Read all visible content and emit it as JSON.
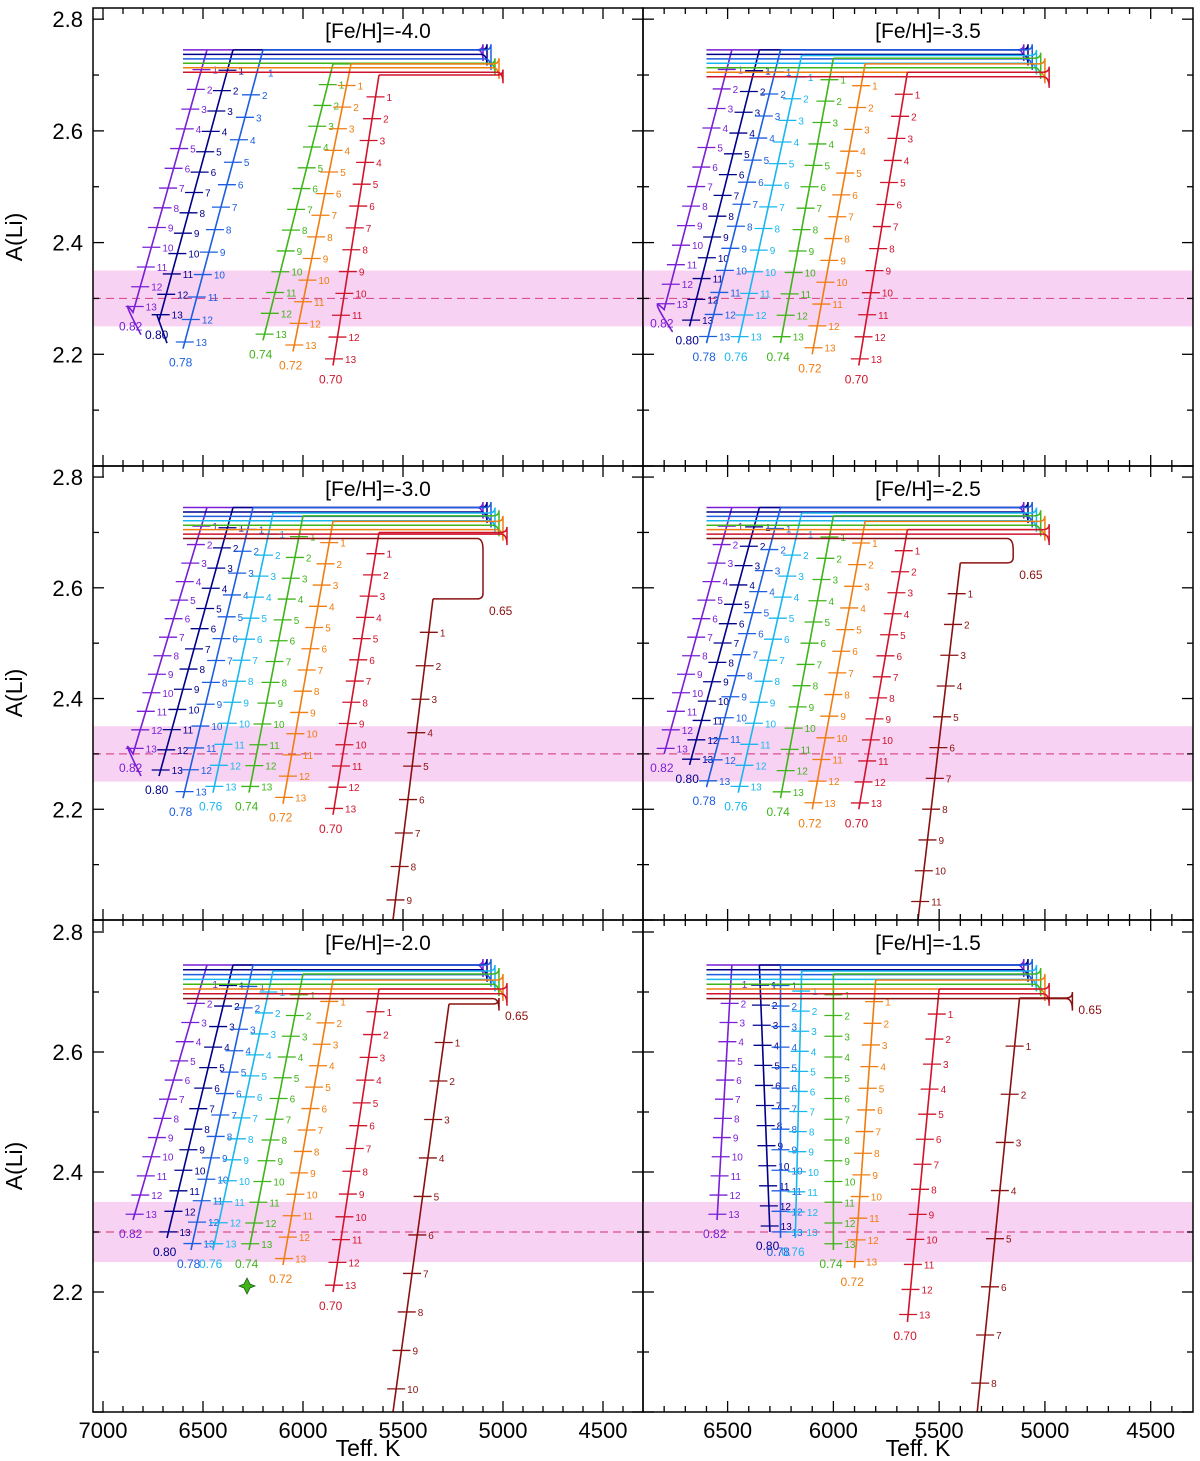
{
  "figure": {
    "xlabel": "Teff, K",
    "ylabel": "A(Li)",
    "band_color": "#f8d2f2",
    "band_line_color": "#d9508a",
    "mass_colors": {
      "0.82": "#7a1fd6",
      "0.80": "#00008b",
      "0.78": "#1d5fe0",
      "0.76": "#18b7ef",
      "0.74": "#3fb51a",
      "0.72": "#f07d10",
      "0.70": "#d0142c",
      "0.65": "#8b1010"
    }
  },
  "chart_data": [
    {
      "type": "line",
      "title": "[Fe/H]=-4.0",
      "xlim": [
        7050,
        4300
      ],
      "ylim": [
        2.0,
        2.82
      ],
      "xticks": [],
      "xlabel": "",
      "ylabel": "A(Li)",
      "yticks": [
        2.2,
        2.4,
        2.6,
        2.8
      ],
      "band": [
        2.25,
        2.35
      ],
      "band_center": 2.3,
      "series": [
        {
          "name": "0.82",
          "start": [
            6480,
            2.745
          ],
          "end": [
            6850,
            2.275
          ],
          "label": "0.82",
          "hook": [
            6920,
            2.31
          ]
        },
        {
          "name": "0.80",
          "start": [
            6350,
            2.745
          ],
          "end": [
            6720,
            2.26
          ],
          "label": "0.80",
          "hook": [
            6750,
            2.29
          ]
        },
        {
          "name": "0.78",
          "start": [
            6200,
            2.745
          ],
          "end": [
            6600,
            2.21
          ],
          "label": "0.78"
        },
        {
          "name": "0.74",
          "start": [
            5850,
            2.72
          ],
          "end": [
            6200,
            2.225
          ],
          "label": "0.74"
        },
        {
          "name": "0.72",
          "start": [
            5760,
            2.72
          ],
          "end": [
            6050,
            2.205
          ],
          "label": "0.72"
        },
        {
          "name": "0.70",
          "start": [
            5620,
            2.7
          ],
          "end": [
            5850,
            2.18
          ],
          "label": "0.70"
        }
      ],
      "tick_numbers": [
        "1",
        "2",
        "3",
        "4",
        "5",
        "6",
        "7",
        "8",
        "9",
        "10",
        "11",
        "12",
        "13"
      ]
    },
    {
      "type": "line",
      "title": "[Fe/H]=-3.5",
      "xlim": [
        6900,
        4300
      ],
      "ylim": [
        2.0,
        2.82
      ],
      "xticks": [],
      "xlabel": "",
      "ylabel": "",
      "yticks": [],
      "band": [
        2.25,
        2.35
      ],
      "band_center": 2.3,
      "series": [
        {
          "name": "0.82",
          "start": [
            6480,
            2.745
          ],
          "end": [
            6800,
            2.28
          ],
          "label": "0.82",
          "hook": [
            6880,
            2.31
          ]
        },
        {
          "name": "0.80",
          "start": [
            6350,
            2.745
          ],
          "end": [
            6680,
            2.25
          ],
          "label": "0.80"
        },
        {
          "name": "0.78",
          "start": [
            6250,
            2.745
          ],
          "end": [
            6600,
            2.22
          ],
          "label": "0.78"
        },
        {
          "name": "0.76",
          "start": [
            6150,
            2.735
          ],
          "end": [
            6450,
            2.22
          ],
          "label": "0.76"
        },
        {
          "name": "0.74",
          "start": [
            6000,
            2.73
          ],
          "end": [
            6250,
            2.22
          ],
          "label": "0.74"
        },
        {
          "name": "0.72",
          "start": [
            5850,
            2.72
          ],
          "end": [
            6100,
            2.2
          ],
          "label": "0.72"
        },
        {
          "name": "0.70",
          "start": [
            5650,
            2.705
          ],
          "end": [
            5880,
            2.18
          ],
          "label": "0.70"
        }
      ],
      "tick_numbers": [
        "1",
        "2",
        "3",
        "4",
        "5",
        "6",
        "7",
        "8",
        "9",
        "10",
        "11",
        "12",
        "13"
      ]
    },
    {
      "type": "line",
      "title": "[Fe/H]=-3.0",
      "xlim": [
        7050,
        4300
      ],
      "ylim": [
        2.0,
        2.82
      ],
      "xticks": [],
      "xlabel": "",
      "ylabel": "A(Li)",
      "yticks": [
        2.2,
        2.4,
        2.6,
        2.8
      ],
      "band": [
        2.25,
        2.35
      ],
      "band_center": 2.3,
      "series": [
        {
          "name": "0.82",
          "start": [
            6480,
            2.745
          ],
          "end": [
            6850,
            2.3
          ],
          "label": "0.82",
          "hook": [
            6920,
            2.34
          ]
        },
        {
          "name": "0.80",
          "start": [
            6350,
            2.745
          ],
          "end": [
            6720,
            2.26
          ],
          "label": "0.80"
        },
        {
          "name": "0.78",
          "start": [
            6250,
            2.745
          ],
          "end": [
            6600,
            2.22
          ],
          "label": "0.78"
        },
        {
          "name": "0.76",
          "start": [
            6150,
            2.735
          ],
          "end": [
            6450,
            2.23
          ],
          "label": "0.76"
        },
        {
          "name": "0.74",
          "start": [
            6000,
            2.73
          ],
          "end": [
            6270,
            2.23
          ],
          "label": "0.74"
        },
        {
          "name": "0.72",
          "start": [
            5850,
            2.72
          ],
          "end": [
            6100,
            2.21
          ],
          "label": "0.72"
        },
        {
          "name": "0.70",
          "start": [
            5620,
            2.7
          ],
          "end": [
            5850,
            2.19
          ],
          "label": "0.70"
        },
        {
          "name": "0.65",
          "start": [
            5350,
            2.58
          ],
          "end": [
            5550,
            2.0
          ],
          "label": "0.65",
          "range": "1-9"
        }
      ],
      "tick_numbers": [
        "1",
        "2",
        "3",
        "4",
        "5",
        "6",
        "7",
        "8",
        "9",
        "10",
        "11",
        "12",
        "13"
      ]
    },
    {
      "type": "line",
      "title": "[Fe/H]=-2.5",
      "xlim": [
        6900,
        4300
      ],
      "ylim": [
        2.0,
        2.82
      ],
      "xticks": [],
      "xlabel": "",
      "ylabel": "",
      "yticks": [],
      "band": [
        2.25,
        2.35
      ],
      "band_center": 2.3,
      "series": [
        {
          "name": "0.82",
          "start": [
            6480,
            2.745
          ],
          "end": [
            6800,
            2.3
          ],
          "label": "0.82"
        },
        {
          "name": "0.80",
          "start": [
            6350,
            2.745
          ],
          "end": [
            6680,
            2.28
          ],
          "label": "0.80"
        },
        {
          "name": "0.78",
          "start": [
            6250,
            2.745
          ],
          "end": [
            6600,
            2.24
          ],
          "label": "0.78"
        },
        {
          "name": "0.76",
          "start": [
            6150,
            2.735
          ],
          "end": [
            6450,
            2.23
          ],
          "label": "0.76"
        },
        {
          "name": "0.74",
          "start": [
            6000,
            2.73
          ],
          "end": [
            6250,
            2.22
          ],
          "label": "0.74"
        },
        {
          "name": "0.72",
          "start": [
            5850,
            2.72
          ],
          "end": [
            6100,
            2.2
          ],
          "label": "0.72"
        },
        {
          "name": "0.70",
          "start": [
            5650,
            2.705
          ],
          "end": [
            5880,
            2.2
          ],
          "label": "0.70"
        },
        {
          "name": "0.65",
          "start": [
            5400,
            2.645
          ],
          "end": [
            5600,
            2.0
          ],
          "label": "0.65",
          "range": "1-11"
        }
      ],
      "tick_numbers": [
        "1",
        "2",
        "3",
        "4",
        "5",
        "6",
        "7",
        "8",
        "9",
        "10",
        "11",
        "12",
        "13"
      ]
    },
    {
      "type": "line",
      "title": "[Fe/H]=-2.0",
      "xlim": [
        7050,
        4300
      ],
      "ylim": [
        2.0,
        2.82
      ],
      "xticks": [
        7000,
        6500,
        6000,
        5500,
        5000,
        4500
      ],
      "xlabel": "Teff, K",
      "ylabel": "A(Li)",
      "yticks": [
        2.2,
        2.4,
        2.6,
        2.8
      ],
      "band": [
        2.25,
        2.35
      ],
      "band_center": 2.3,
      "marker": {
        "x": 6280,
        "y": 2.21,
        "color": "#3fb51a"
      },
      "series": [
        {
          "name": "0.82",
          "start": [
            6480,
            2.745
          ],
          "end": [
            6850,
            2.32
          ],
          "label": "0.82"
        },
        {
          "name": "0.80",
          "start": [
            6350,
            2.745
          ],
          "end": [
            6680,
            2.29
          ],
          "label": "0.80"
        },
        {
          "name": "0.78",
          "start": [
            6250,
            2.745
          ],
          "end": [
            6560,
            2.27
          ],
          "label": "0.78"
        },
        {
          "name": "0.76",
          "start": [
            6150,
            2.735
          ],
          "end": [
            6450,
            2.27
          ],
          "label": "0.76"
        },
        {
          "name": "0.74",
          "start": [
            6000,
            2.73
          ],
          "end": [
            6270,
            2.27
          ],
          "label": "0.74"
        },
        {
          "name": "0.72",
          "start": [
            5850,
            2.72
          ],
          "end": [
            6100,
            2.245
          ],
          "label": "0.72"
        },
        {
          "name": "0.70",
          "start": [
            5620,
            2.705
          ],
          "end": [
            5850,
            2.2
          ],
          "label": "0.70"
        },
        {
          "name": "0.65",
          "start": [
            5270,
            2.68
          ],
          "end": [
            5550,
            2.0
          ],
          "label": "0.65",
          "range": "1-10"
        }
      ],
      "tick_numbers": [
        "1",
        "2",
        "3",
        "4",
        "5",
        "6",
        "7",
        "8",
        "9",
        "10",
        "11",
        "12",
        "13"
      ]
    },
    {
      "type": "line",
      "title": "[Fe/H]=-1.5",
      "xlim": [
        6900,
        4300
      ],
      "ylim": [
        2.0,
        2.82
      ],
      "xticks": [
        6500,
        6000,
        5500,
        5000,
        4500
      ],
      "xlabel": "Teff, K",
      "ylabel": "",
      "yticks": [],
      "band": [
        2.25,
        2.35
      ],
      "band_center": 2.3,
      "series": [
        {
          "name": "0.82",
          "start": [
            6480,
            2.745
          ],
          "end": [
            6550,
            2.32
          ],
          "label": "0.82"
        },
        {
          "name": "0.80",
          "start": [
            6350,
            2.745
          ],
          "end": [
            6300,
            2.3
          ],
          "label": "0.80"
        },
        {
          "name": "0.78",
          "start": [
            6250,
            2.745
          ],
          "end": [
            6250,
            2.29
          ],
          "label": "0.78"
        },
        {
          "name": "0.76",
          "start": [
            6150,
            2.735
          ],
          "end": [
            6180,
            2.29
          ],
          "label": "0.76"
        },
        {
          "name": "0.74",
          "start": [
            6000,
            2.73
          ],
          "end": [
            6000,
            2.27
          ],
          "label": "0.74"
        },
        {
          "name": "0.72",
          "start": [
            5800,
            2.72
          ],
          "end": [
            5900,
            2.24
          ],
          "label": "0.72"
        },
        {
          "name": "0.70",
          "start": [
            5500,
            2.705
          ],
          "end": [
            5650,
            2.15
          ],
          "label": "0.70"
        },
        {
          "name": "0.65",
          "start": [
            5120,
            2.69
          ],
          "end": [
            5320,
            2.0
          ],
          "label": "0.65",
          "range": "1-8"
        }
      ],
      "tick_numbers": [
        "1",
        "2",
        "3",
        "4",
        "5",
        "6",
        "7",
        "8",
        "9",
        "10",
        "11",
        "12",
        "13"
      ]
    }
  ]
}
